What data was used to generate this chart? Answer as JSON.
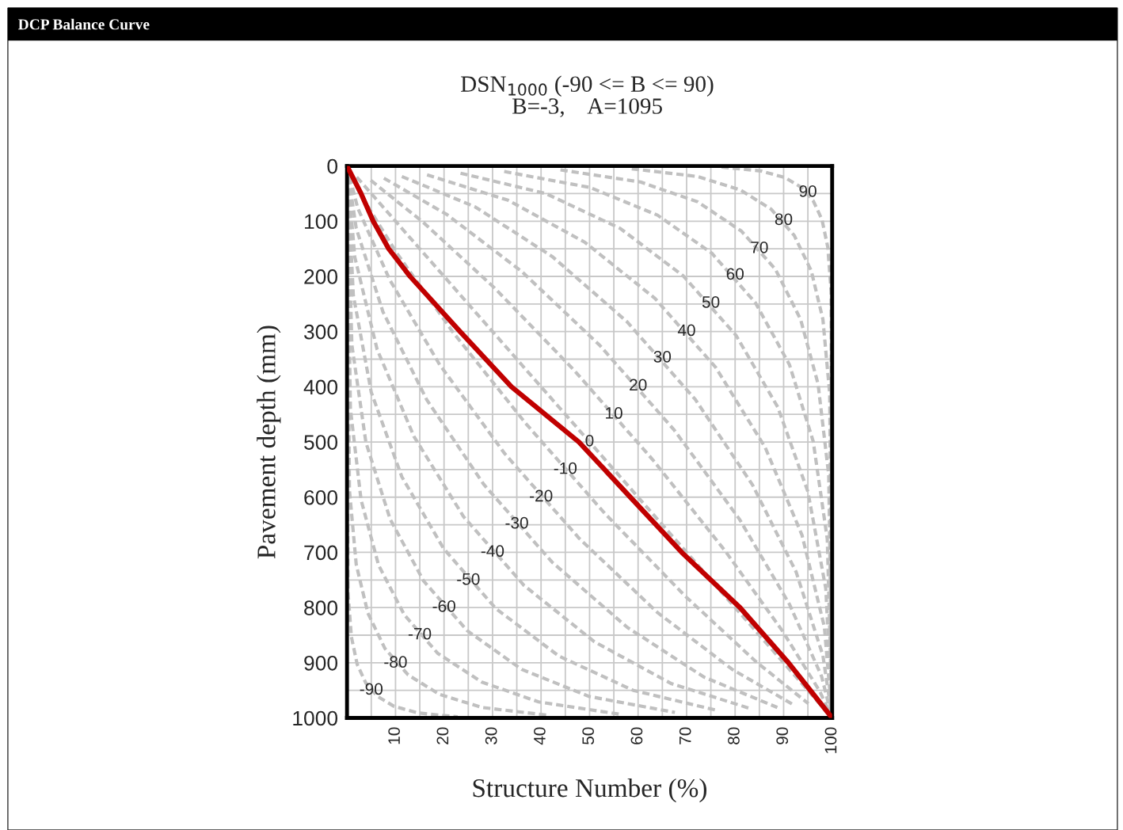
{
  "chart_data": {
    "type": "line",
    "title": "DCP Balance Curve",
    "subtitle": "DSN$_{1000}$ (-90 <= B <= 90)\nB=-3,    A=1095",
    "xlabel": "Structure Number (%)",
    "ylabel": "Pavement depth (mm)",
    "xlim": [
      0,
      100
    ],
    "ylim": [
      1000,
      0
    ],
    "xticks": [
      {
        "value": 5,
        "label": null
      },
      10,
      {
        "value": 15,
        "label": null
      },
      20,
      {
        "value": 25,
        "label": null
      },
      30,
      {
        "value": 35,
        "label": null
      },
      40,
      {
        "value": 45,
        "label": null
      },
      50,
      {
        "value": 55,
        "label": null
      },
      60,
      {
        "value": 65,
        "label": null
      },
      70,
      {
        "value": 75,
        "label": null
      },
      80,
      {
        "value": 85,
        "label": null
      },
      90,
      {
        "value": 95,
        "label": null
      },
      100
    ],
    "yticks": [
      0,
      {
        "value": 50,
        "label": null
      },
      100,
      {
        "value": 150,
        "label": null
      },
      200,
      {
        "value": 250,
        "label": null
      },
      300,
      {
        "value": 350,
        "label": null
      },
      400,
      {
        "value": 450,
        "label": null
      },
      500,
      {
        "value": 550,
        "label": null
      },
      600,
      {
        "value": 650,
        "label": null
      },
      700,
      {
        "value": 750,
        "label": null
      },
      800,
      {
        "value": 850,
        "label": null
      },
      900,
      {
        "value": 950,
        "label": null
      },
      1000
    ],
    "grid": true,
    "marker": "none",
    "series": [
      {
        "color": "#c0c0c0",
        "line_style": "dashed",
        "x": [
          0,
          0.2,
          0.9,
          2.1,
          3.9,
          6.3,
          9.7,
          14.7,
          22.8
        ],
        "values": [
          0,
          772,
          853,
          903,
          937,
          961,
          979,
          991,
          998
        ]
      },
      {
        "color": "#c0c0c0",
        "line_style": "dashed",
        "x": [
          0,
          0.5,
          1.9,
          4.3,
          7.8,
          12.6,
          19.0,
          27.8,
          41.3
        ],
        "values": [
          0,
          587,
          722,
          810,
          874,
          922,
          957,
          981,
          995
        ]
      },
      {
        "color": "#c0c0c0",
        "line_style": "dashed",
        "x": [
          0,
          0.7,
          2.9,
          6.5,
          11.8,
          18.7,
          27.8,
          39.5,
          56.0
        ],
        "values": [
          0,
          440,
          605,
          723,
          813,
          883,
          935,
          971,
          993
        ]
      },
      {
        "color": "#c0c0c0",
        "line_style": "dashed",
        "x": [
          0,
          1.0,
          3.9,
          8.9,
          15.8,
          24.8,
          36.0,
          49.9,
          67.6
        ],
        "values": [
          0,
          324,
          501,
          640,
          752,
          842,
          912,
          961,
          990
        ]
      },
      {
        "color": "#c0c0c0",
        "line_style": "dashed",
        "x": [
          0,
          1.3,
          5.0,
          11.3,
          19.9,
          30.7,
          43.7,
          59.0,
          76.6
        ],
        "values": [
          0,
          234,
          410,
          563,
          693,
          802,
          888,
          950,
          987
        ]
      },
      {
        "color": "#c0c0c0",
        "line_style": "dashed",
        "x": [
          0,
          1.6,
          6.2,
          13.8,
          24.0,
          36.5,
          51.0,
          66.9,
          83.5
        ],
        "values": [
          0,
          165,
          332,
          490,
          635,
          760,
          862,
          938,
          984
        ]
      },
      {
        "color": "#c0c0c0",
        "line_style": "dashed",
        "x": [
          0,
          1.9,
          7.4,
          16.4,
          28.2,
          42.3,
          57.8,
          73.6,
          88.7
        ],
        "values": [
          0,
          113,
          264,
          423,
          577,
          718,
          836,
          926,
          981
        ]
      },
      {
        "color": "#c0c0c0",
        "line_style": "dashed",
        "x": [
          0,
          2.2,
          8.8,
          19.1,
          32.5,
          47.9,
          64.0,
          79.4,
          92.4
        ],
        "values": [
          0,
          76,
          206,
          360,
          521,
          675,
          809,
          912,
          978
        ]
      },
      {
        "color": "#c0c0c0",
        "line_style": "dashed",
        "x": [
          0,
          2.6,
          10.2,
          22.0,
          36.9,
          53.3,
          69.8,
          84.3,
          95.1
        ],
        "values": [
          0,
          49,
          157,
          303,
          467,
          631,
          780,
          898,
          974
        ]
      },
      {
        "color": "#c0c0c0",
        "line_style": "dashed",
        "x": [
          2,
          50,
          100
        ],
        "values": [
          20,
          500,
          1000
        ]
      },
      {
        "color": "#c0c0c0",
        "line_style": "dashed",
        "x": [
          4.9,
          15.7,
          30.3,
          46.7,
          63.1,
          78.0,
          89.8,
          97.4,
          100
        ],
        "values": [
          26,
          102,
          220,
          369,
          533,
          698,
          843,
          951,
          1000
        ]
      },
      {
        "color": "#c0c0c0",
        "line_style": "dashed",
        "x": [
          7.6,
          20.6,
          36.0,
          52.1,
          67.5,
          80.9,
          91.2,
          97.8,
          100
        ],
        "values": [
          22,
          88,
          191,
          325,
          479,
          640,
          794,
          924,
          1000
        ]
      },
      {
        "color": "#c0c0c0",
        "line_style": "dashed",
        "x": [
          11.3,
          26.4,
          42.3,
          57.7,
          71.8,
          83.6,
          92.6,
          98.1,
          100
        ],
        "values": [
          19,
          74,
          164,
          282,
          423,
          578,
          736,
          887,
          1000
        ]
      },
      {
        "color": "#c0c0c0",
        "line_style": "dashed",
        "x": [
          16.5,
          33.2,
          49.0,
          63.5,
          76.0,
          86.2,
          93.8,
          98.4,
          100
        ],
        "values": [
          16,
          62,
          138,
          240,
          365,
          510,
          669,
          835,
          1000
        ]
      },
      {
        "color": "#c0c0c0",
        "line_style": "dashed",
        "x": [
          23.4,
          41.0,
          56.3,
          69.3,
          80.2,
          88.8,
          95.0,
          98.7,
          100
        ],
        "values": [
          13,
          50,
          113,
          199,
          307,
          437,
          590,
          766,
          1000
        ]
      },
      {
        "color": "#c0c0c0",
        "line_style": "dashed",
        "x": [
          32.4,
          50.1,
          64.0,
          75.2,
          84.2,
          91.2,
          96.1,
          99.0,
          100
        ],
        "values": [
          10,
          39,
          89,
          158,
          248,
          360,
          499,
          676,
          1000
        ]
      },
      {
        "color": "#c0c0c0",
        "line_style": "dashed",
        "x": [
          44.0,
          60.5,
          72.3,
          81.3,
          88.3,
          93.5,
          97.1,
          99.3,
          100
        ],
        "values": [
          7,
          29,
          65,
          118,
          187,
          278,
          395,
          560,
          1000
        ]
      },
      {
        "color": "#c0c0c0",
        "line_style": "dashed",
        "x": [
          58.7,
          72.2,
          81.0,
          87.4,
          92.2,
          95.7,
          98.1,
          99.5,
          100
        ],
        "values": [
          5,
          19,
          43,
          78,
          126,
          190,
          278,
          413,
          1000
        ]
      },
      {
        "color": "#c0c0c0",
        "line_style": "dashed",
        "x": [
          77.2,
          85.3,
          90.3,
          93.7,
          96.1,
          97.9,
          99.1,
          99.8,
          100
        ],
        "values": [
          2,
          9,
          21,
          39,
          63,
          97,
          147,
          228,
          1000
        ]
      },
      {
        "color": "#c00000",
        "line_style": "solid",
        "x": [
          0,
          2.9,
          5.4,
          8.6,
          13,
          23.3,
          33.9,
          47.8,
          58.4,
          69,
          81,
          91,
          100
        ],
        "values": [
          0,
          50,
          100,
          150,
          200,
          300,
          400,
          500,
          600,
          700,
          800,
          900,
          1000
        ]
      }
    ],
    "annotations": [
      {
        "text": "90",
        "x": 95,
        "y": 48
      },
      {
        "text": "80",
        "x": 90,
        "y": 99
      },
      {
        "text": "70",
        "x": 85,
        "y": 150
      },
      {
        "text": "60",
        "x": 80,
        "y": 198
      },
      {
        "text": "50",
        "x": 75,
        "y": 249
      },
      {
        "text": "40",
        "x": 70,
        "y": 300
      },
      {
        "text": "30",
        "x": 65,
        "y": 348
      },
      {
        "text": "20",
        "x": 60,
        "y": 399
      },
      {
        "text": "10",
        "x": 55,
        "y": 450
      },
      {
        "text": "0",
        "x": 50,
        "y": 500
      },
      {
        "text": "-10",
        "x": 45,
        "y": 550
      },
      {
        "text": "-20",
        "x": 40,
        "y": 600
      },
      {
        "text": "-30",
        "x": 35,
        "y": 649
      },
      {
        "text": "-40",
        "x": 30,
        "y": 700
      },
      {
        "text": "-50",
        "x": 25,
        "y": 751
      },
      {
        "text": "-60",
        "x": 20,
        "y": 800
      },
      {
        "text": "-70",
        "x": 15,
        "y": 850
      },
      {
        "text": "-80",
        "x": 10,
        "y": 901
      },
      {
        "text": "-90",
        "x": 5,
        "y": 950
      }
    ]
  }
}
